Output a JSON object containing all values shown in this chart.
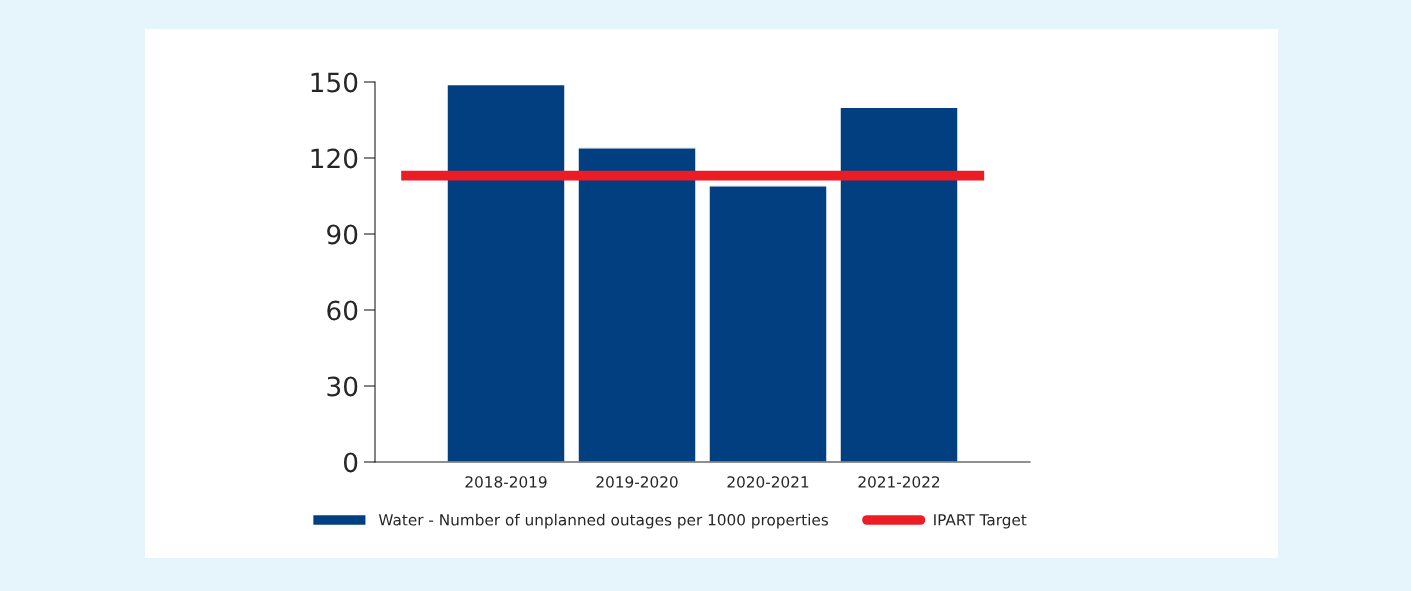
{
  "chart_data": {
    "type": "bar",
    "categories": [
      "2018-2019",
      "2019-2020",
      "2020-2021",
      "2021-2022"
    ],
    "series": [
      {
        "name": "Water - Number of unplanned outages per 1000 properties",
        "color": "#023f80",
        "values": [
          149,
          124,
          109,
          140
        ]
      }
    ],
    "ref_lines": [
      {
        "axis": "y",
        "value": 113,
        "label": "IPART Target",
        "color": "#ec1c24"
      }
    ],
    "ylim": [
      0,
      150
    ],
    "yticks": [
      0,
      30,
      60,
      90,
      120,
      150
    ],
    "grid": false,
    "legend": "bottom"
  }
}
